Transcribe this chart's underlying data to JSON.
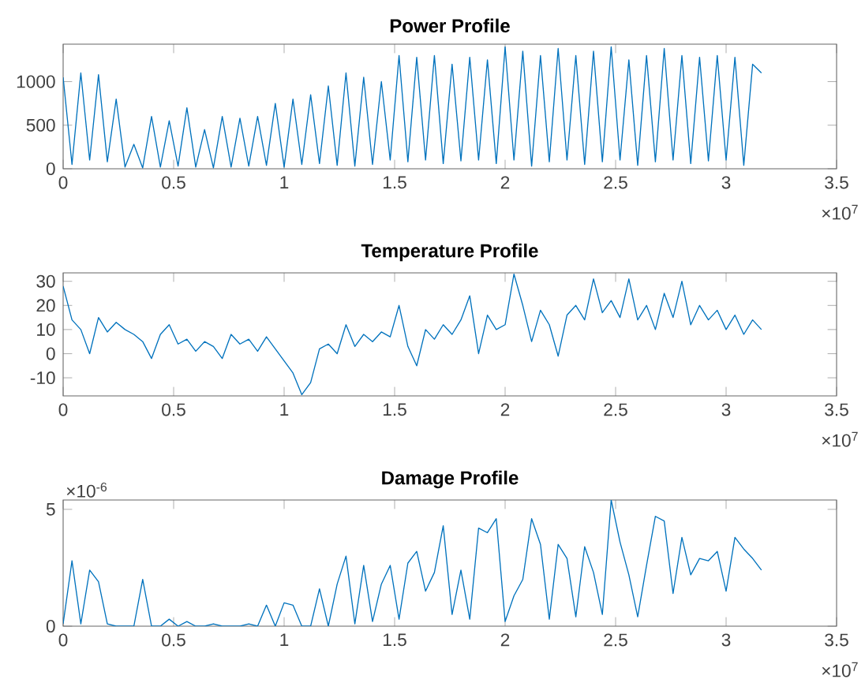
{
  "chart_data": [
    {
      "type": "line",
      "title": "Power Profile",
      "color": "#0072bd",
      "x": [
        0,
        0.04,
        0.08,
        0.12,
        0.16,
        0.2,
        0.24,
        0.28,
        0.32,
        0.36,
        0.4,
        0.44,
        0.48,
        0.52,
        0.56,
        0.6,
        0.64,
        0.68,
        0.72,
        0.76,
        0.8,
        0.84,
        0.88,
        0.92,
        0.96,
        1,
        1.04,
        1.08,
        1.12,
        1.16,
        1.2,
        1.24,
        1.28,
        1.32,
        1.36,
        1.4,
        1.44,
        1.48,
        1.52,
        1.56,
        1.6,
        1.64,
        1.68,
        1.72,
        1.76,
        1.8,
        1.84,
        1.88,
        1.92,
        1.96,
        2,
        2.04,
        2.08,
        2.12,
        2.16,
        2.2,
        2.24,
        2.28,
        2.32,
        2.36,
        2.4,
        2.44,
        2.48,
        2.52,
        2.56,
        2.6,
        2.64,
        2.68,
        2.72,
        2.76,
        2.8,
        2.84,
        2.88,
        2.92,
        2.96,
        3,
        3.04,
        3.08,
        3.12,
        3.16
      ],
      "values": [
        1050,
        50,
        1100,
        100,
        1080,
        80,
        800,
        20,
        280,
        10,
        600,
        20,
        550,
        30,
        700,
        20,
        450,
        10,
        600,
        20,
        580,
        30,
        600,
        40,
        750,
        20,
        800,
        50,
        850,
        60,
        950,
        40,
        1100,
        30,
        1050,
        50,
        1000,
        100,
        1300,
        80,
        1280,
        100,
        1300,
        60,
        1200,
        90,
        1280,
        100,
        1250,
        60,
        1400,
        100,
        1350,
        30,
        1300,
        80,
        1380,
        100,
        1300,
        50,
        1350,
        80,
        1400,
        100,
        1250,
        40,
        1300,
        80,
        1380,
        100,
        1300,
        60,
        1280,
        90,
        1300,
        100,
        1280,
        40,
        1200,
        1100
      ],
      "xlim": [
        0,
        3.5
      ],
      "xticks": [
        0,
        0.5,
        1,
        1.5,
        2,
        2.5,
        3,
        3.5
      ],
      "ylim": [
        0,
        1430
      ],
      "yticks": [
        0,
        500,
        1000
      ],
      "annotations": [
        "×10$^{7}$"
      ]
    },
    {
      "type": "line",
      "title": "Temperature Profile",
      "color": "#0072bd",
      "x": [
        0,
        0.04,
        0.08,
        0.12,
        0.16,
        0.2,
        0.24,
        0.28,
        0.32,
        0.36,
        0.4,
        0.44,
        0.48,
        0.52,
        0.56,
        0.6,
        0.64,
        0.68,
        0.72,
        0.76,
        0.8,
        0.84,
        0.88,
        0.92,
        0.96,
        1,
        1.04,
        1.08,
        1.12,
        1.16,
        1.2,
        1.24,
        1.28,
        1.32,
        1.36,
        1.4,
        1.44,
        1.48,
        1.52,
        1.56,
        1.6,
        1.64,
        1.68,
        1.72,
        1.76,
        1.8,
        1.84,
        1.88,
        1.92,
        1.96,
        2,
        2.04,
        2.08,
        2.12,
        2.16,
        2.2,
        2.24,
        2.28,
        2.32,
        2.36,
        2.4,
        2.44,
        2.48,
        2.52,
        2.56,
        2.6,
        2.64,
        2.68,
        2.72,
        2.76,
        2.8,
        2.84,
        2.88,
        2.92,
        2.96,
        3,
        3.04,
        3.08,
        3.12,
        3.16
      ],
      "values": [
        28,
        14,
        10,
        0,
        15,
        9,
        13,
        10,
        8,
        5,
        -2,
        8,
        12,
        4,
        6,
        1,
        5,
        3,
        -2,
        8,
        4,
        6,
        1,
        7,
        2,
        -3,
        -8,
        -17,
        -12,
        2,
        4,
        0,
        12,
        3,
        8,
        5,
        9,
        7,
        20,
        3,
        -5,
        10,
        6,
        12,
        8,
        14,
        24,
        0,
        16,
        10,
        12,
        33,
        20,
        5,
        18,
        12,
        -1,
        16,
        20,
        14,
        31,
        17,
        22,
        15,
        31,
        14,
        20,
        10,
        25,
        15,
        30,
        12,
        20,
        14,
        18,
        10,
        16,
        8,
        14,
        10
      ],
      "xlim": [
        0,
        3.5
      ],
      "xticks": [
        0,
        0.5,
        1,
        1.5,
        2,
        2.5,
        3,
        3.5
      ],
      "ylim": [
        -17.5,
        33.5
      ],
      "yticks": [
        -10,
        0,
        10,
        20,
        30
      ],
      "annotations": [
        "×10$^{7}$"
      ]
    },
    {
      "type": "line",
      "title": "Damage Profile",
      "color": "#0072bd",
      "x": [
        0,
        0.04,
        0.08,
        0.12,
        0.16,
        0.2,
        0.24,
        0.28,
        0.32,
        0.36,
        0.4,
        0.44,
        0.48,
        0.52,
        0.56,
        0.6,
        0.64,
        0.68,
        0.72,
        0.76,
        0.8,
        0.84,
        0.88,
        0.92,
        0.96,
        1,
        1.04,
        1.08,
        1.12,
        1.16,
        1.2,
        1.24,
        1.28,
        1.32,
        1.36,
        1.4,
        1.44,
        1.48,
        1.52,
        1.56,
        1.6,
        1.64,
        1.68,
        1.72,
        1.76,
        1.8,
        1.84,
        1.88,
        1.92,
        1.96,
        2,
        2.04,
        2.08,
        2.12,
        2.16,
        2.2,
        2.24,
        2.28,
        2.32,
        2.36,
        2.4,
        2.44,
        2.48,
        2.52,
        2.56,
        2.6,
        2.64,
        2.68,
        2.72,
        2.76,
        2.8,
        2.84,
        2.88,
        2.92,
        2.96,
        3,
        3.04,
        3.08,
        3.12,
        3.16
      ],
      "values": [
        0.1,
        2.8,
        0.1,
        2.4,
        1.9,
        0.1,
        0,
        0,
        0,
        2,
        0,
        0,
        0.3,
        0,
        0.2,
        0,
        0,
        0.1,
        0,
        0,
        0,
        0.1,
        0,
        0.9,
        0,
        1,
        0.9,
        0,
        0,
        1.6,
        0,
        1.8,
        3,
        0.1,
        2.6,
        0.2,
        1.8,
        2.6,
        0.3,
        2.7,
        3.2,
        1.5,
        2.3,
        4.3,
        0.5,
        2.4,
        0.3,
        4.2,
        4,
        4.6,
        0.2,
        1.3,
        2,
        4.6,
        3.5,
        0.3,
        3.5,
        2.9,
        0.4,
        3.4,
        2.3,
        0.5,
        5.4,
        3.6,
        2.2,
        0.4,
        2.6,
        4.7,
        4.5,
        1.4,
        3.8,
        2.2,
        2.9,
        2.8,
        3.2,
        1.5,
        3.8,
        3.3,
        2.9,
        2.4
      ],
      "xlim": [
        0,
        3.5
      ],
      "xticks": [
        0,
        0.5,
        1,
        1.5,
        2,
        2.5,
        3,
        3.5
      ],
      "ylim": [
        0,
        5.4
      ],
      "yticks": [
        0,
        5
      ],
      "annotations": [
        "×10$^{-6}$",
        "×10$^{7}$"
      ]
    }
  ]
}
